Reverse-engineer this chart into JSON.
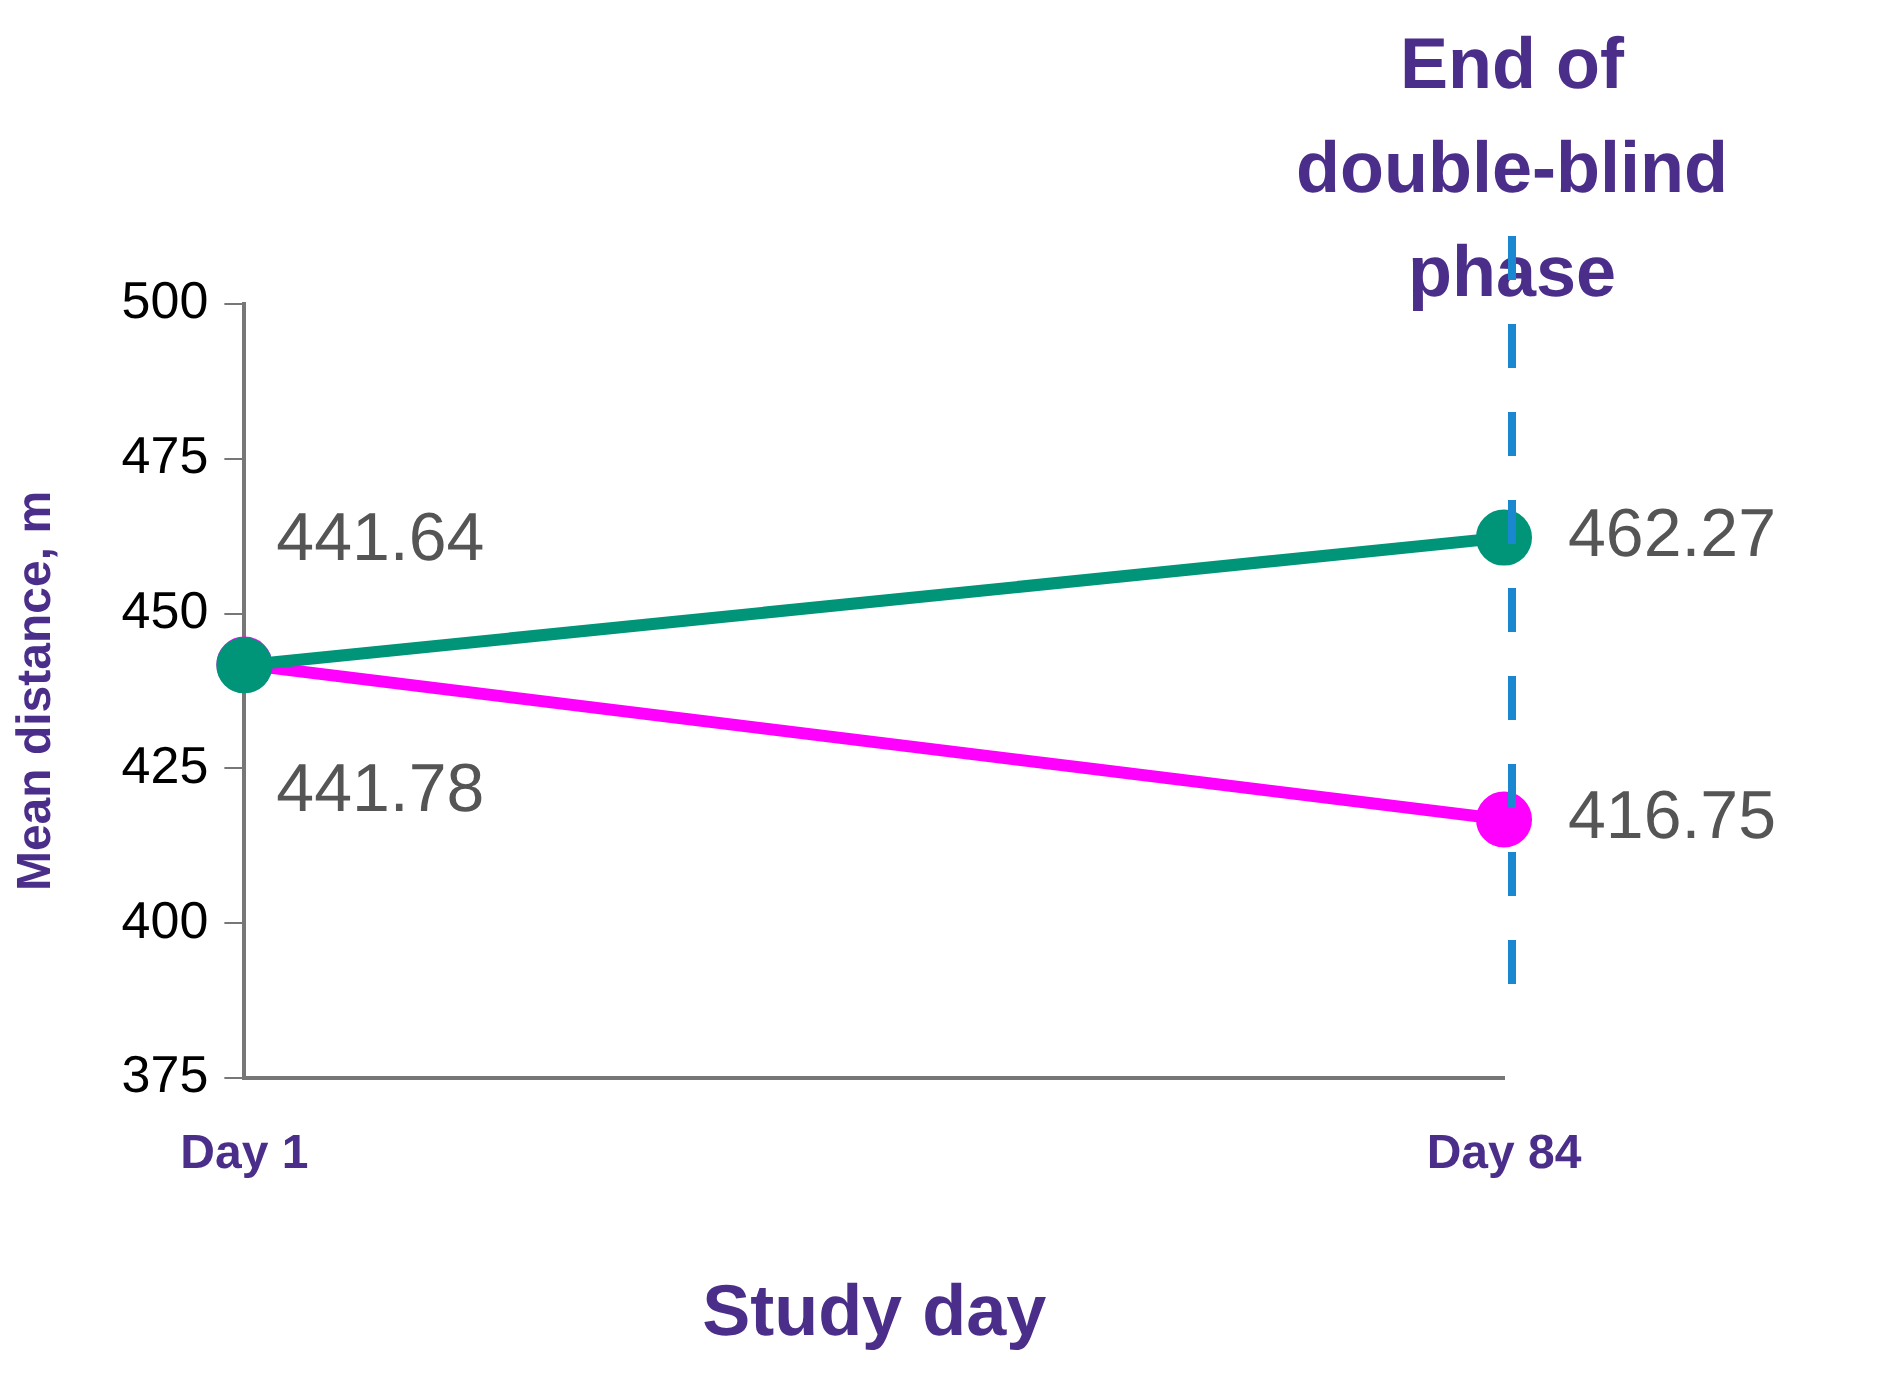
{
  "chart_data": {
    "type": "line",
    "xlabel": "Study day",
    "ylabel": "Mean distance, m",
    "categories": [
      "Day 1",
      "Day 84"
    ],
    "series": [
      {
        "color": "#009479",
        "values": [
          441.64,
          462.27
        ]
      },
      {
        "color": "#ff00ff",
        "values": [
          441.78,
          416.75
        ]
      }
    ],
    "ylim": [
      375,
      500
    ],
    "yticks": [
      375,
      400,
      425,
      450,
      475,
      500
    ],
    "ref_lines": [
      {
        "axis": "x",
        "value": "Day 84",
        "label": "End of double-blind phase",
        "color": "#1a88d0",
        "line_style": "dashed"
      }
    ],
    "data_labels": true,
    "grid": false,
    "legend": false,
    "marker": "circle",
    "line_style": "solid"
  }
}
